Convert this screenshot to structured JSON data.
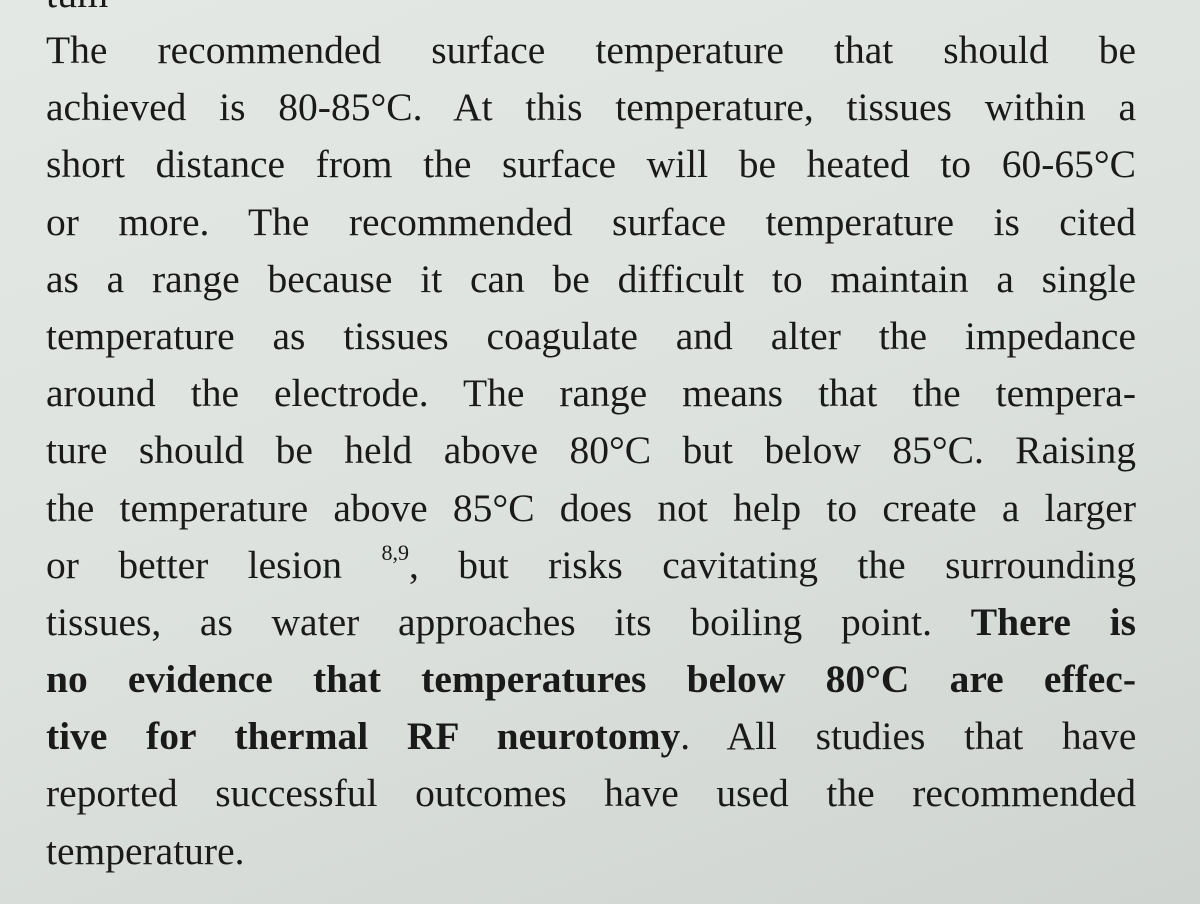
{
  "fragment_top": "tum",
  "lines": [
    "The recommended surface temperature that should be",
    "achieved is 80-85°C. At this temperature, tissues within a",
    "short distance from the surface will be heated to 60-65°C",
    "or more. The recommended surface temperature is cited",
    "as a range because it can be difficult to maintain a single",
    "temperature as tissues coagulate and alter the impedance",
    "around the electrode. The range means that the tempera-",
    "ture should be held above 80°C but below 85°C. Raising",
    "the temperature above 85°C does not help to create a larger"
  ],
  "line10_pre": "or better lesion ",
  "line10_ref": "8,9",
  "line10_post": ", but risks cavitating the surrounding",
  "line11_pre": "tissues, as water approaches its boiling point.  ",
  "line11_bold": "There is",
  "line12_bold": "no evidence that temperatures below 80°C are effec-",
  "line13_bold": "tive for thermal RF neurotomy",
  "line13_post": ". All studies that have",
  "line14": "reported successful outcomes have used the recommended",
  "line15": "temperature."
}
